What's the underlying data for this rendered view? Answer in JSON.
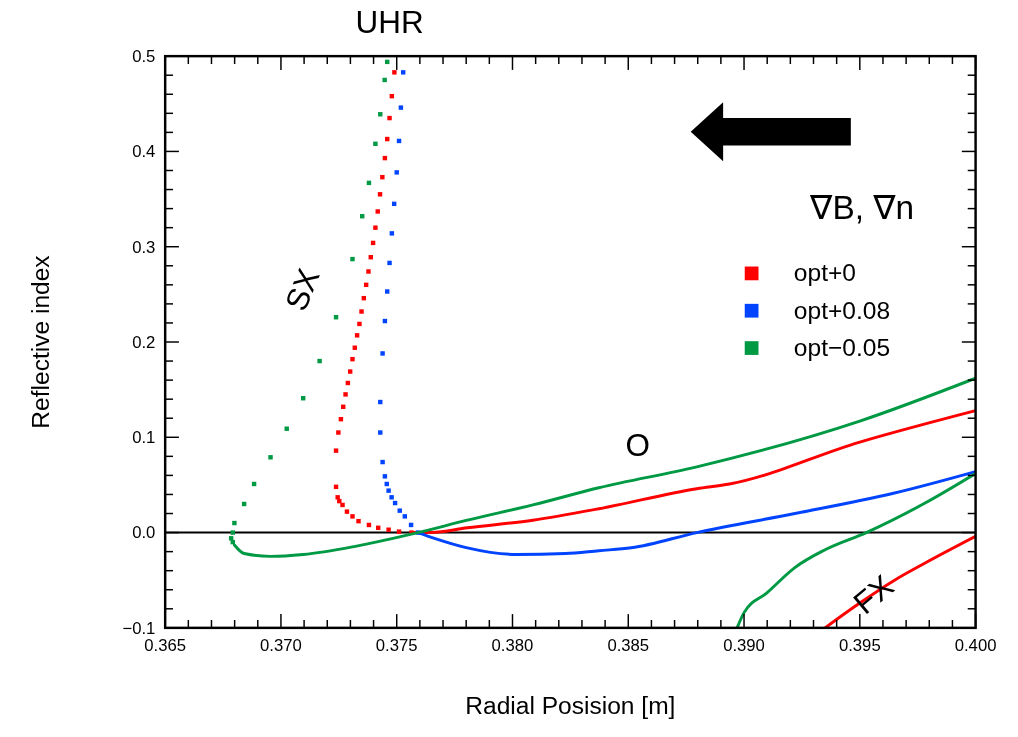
{
  "chart_data": {
    "type": "line",
    "xlabel": "Radial Posision [m]",
    "ylabel": "Reflective index",
    "xlim": [
      0.365,
      0.4
    ],
    "ylim": [
      -0.1,
      0.5
    ],
    "xticks": [
      0.365,
      {
        "value": 0.366,
        "label": null
      },
      {
        "value": 0.367,
        "label": null
      },
      {
        "value": 0.368,
        "label": null
      },
      {
        "value": 0.369,
        "label": null
      },
      {
        "value": 0.37,
        "label": "0.370"
      },
      {
        "value": 0.371,
        "label": null
      },
      {
        "value": 0.372,
        "label": null
      },
      {
        "value": 0.373,
        "label": null
      },
      {
        "value": 0.374,
        "label": null
      },
      0.375,
      {
        "value": 0.376,
        "label": null
      },
      {
        "value": 0.377,
        "label": null
      },
      {
        "value": 0.378,
        "label": null
      },
      {
        "value": 0.379,
        "label": null
      },
      {
        "value": 0.38,
        "label": "0.380"
      },
      {
        "value": 0.381,
        "label": null
      },
      {
        "value": 0.382,
        "label": null
      },
      {
        "value": 0.383,
        "label": null
      },
      {
        "value": 0.384,
        "label": null
      },
      0.385,
      {
        "value": 0.386,
        "label": null
      },
      {
        "value": 0.387,
        "label": null
      },
      {
        "value": 0.388,
        "label": null
      },
      {
        "value": 0.389,
        "label": null
      },
      {
        "value": 0.39,
        "label": "0.390"
      },
      {
        "value": 0.391,
        "label": null
      },
      {
        "value": 0.392,
        "label": null
      },
      {
        "value": 0.393,
        "label": null
      },
      {
        "value": 0.394,
        "label": null
      },
      0.395,
      {
        "value": 0.396,
        "label": null
      },
      {
        "value": 0.397,
        "label": null
      },
      {
        "value": 0.398,
        "label": null
      },
      {
        "value": 0.399,
        "label": null
      },
      {
        "value": 0.4,
        "label": "0.400"
      }
    ],
    "yticks": [
      {
        "value": -0.1,
        "label": "−0.1"
      },
      {
        "value": -0.08,
        "label": null
      },
      {
        "value": -0.06,
        "label": null
      },
      {
        "value": -0.04,
        "label": null
      },
      {
        "value": -0.02,
        "label": null
      },
      {
        "value": 0,
        "label": "0.0"
      },
      {
        "value": 0.02,
        "label": null
      },
      {
        "value": 0.04,
        "label": null
      },
      {
        "value": 0.06,
        "label": null
      },
      {
        "value": 0.08,
        "label": null
      },
      0.1,
      {
        "value": 0.12,
        "label": null
      },
      {
        "value": 0.14,
        "label": null
      },
      {
        "value": 0.16,
        "label": null
      },
      {
        "value": 0.18,
        "label": null
      },
      0.2,
      {
        "value": 0.22,
        "label": null
      },
      {
        "value": 0.24,
        "label": null
      },
      {
        "value": 0.26,
        "label": null
      },
      {
        "value": 0.28,
        "label": null
      },
      0.3,
      {
        "value": 0.32,
        "label": null
      },
      {
        "value": 0.34,
        "label": null
      },
      {
        "value": 0.36,
        "label": null
      },
      {
        "value": 0.38,
        "label": null
      },
      0.4,
      {
        "value": 0.42,
        "label": null
      },
      {
        "value": 0.44,
        "label": null
      },
      {
        "value": 0.46,
        "label": null
      },
      {
        "value": 0.48,
        "label": null
      },
      0.5
    ],
    "grid": false,
    "legend": "right",
    "line_style": "solid",
    "ref_lines": [
      {
        "axis": "y",
        "value": 0,
        "color": "#000000"
      }
    ],
    "annotations": [
      "UHR",
      "SX",
      "O",
      "FX",
      "∇B, ∇n"
    ],
    "series": [
      {
        "name": "opt+0",
        "type": "scatter",
        "marker": "square",
        "color": "#ff0000",
        "x": [
          0.3749,
          0.37479,
          0.37469,
          0.37459,
          0.37449,
          0.37438,
          0.37428,
          0.37418,
          0.37408,
          0.37398,
          0.37388,
          0.37378,
          0.37368,
          0.37358,
          0.37348,
          0.37339,
          0.37329,
          0.37319,
          0.37309,
          0.37299,
          0.37289,
          0.37279,
          0.37269,
          0.37259,
          0.37248,
          0.37238,
          0.37238,
          0.37245,
          0.37252,
          0.37266,
          0.37285,
          0.37309,
          0.37335,
          0.3738,
          0.3742,
          0.37465,
          0.3751,
          0.37564
        ],
        "values": [
          0.483,
          0.458,
          0.435,
          0.413,
          0.393,
          0.373,
          0.355,
          0.337,
          0.32,
          0.304,
          0.289,
          0.274,
          0.26,
          0.246,
          0.232,
          0.219,
          0.207,
          0.194,
          0.182,
          0.169,
          0.157,
          0.145,
          0.132,
          0.119,
          0.105,
          0.086,
          0.048,
          0.037,
          0.033,
          0.029,
          0.022,
          0.017,
          0.012,
          0.008,
          0.005,
          0.003,
          0.001,
          0
        ]
      },
      {
        "color": "#ff0000",
        "x": [
          0.37564,
          0.3765,
          0.37805,
          0.38088,
          0.38373,
          0.38796,
          0.38937,
          0.395,
          0.4
        ],
        "values": [
          0,
          0,
          0.005,
          0.013,
          0.025,
          0.046,
          0.051,
          0.095,
          0.128
        ]
      },
      {
        "color": "#ff0000",
        "x": [
          0.3935,
          0.395,
          0.3965,
          0.39782,
          0.4
        ],
        "values": [
          -0.1,
          -0.074,
          -0.05,
          -0.032,
          -0.004
        ]
      },
      {
        "name": "opt+0.08",
        "type": "scatter",
        "marker": "square",
        "color": "#0044ff",
        "x": [
          0.37528,
          0.37518,
          0.3751,
          0.375,
          0.37489,
          0.37479,
          0.37469,
          0.37459,
          0.37449,
          0.37439,
          0.37429,
          0.37429,
          0.37439,
          0.37449,
          0.37457,
          0.37465,
          0.37478,
          0.37493,
          0.37513,
          0.37535,
          0.37562,
          0.37592
        ],
        "values": [
          0.483,
          0.446,
          0.411,
          0.378,
          0.345,
          0.314,
          0.283,
          0.253,
          0.222,
          0.188,
          0.137,
          0.105,
          0.074,
          0.059,
          0.051,
          0.044,
          0.037,
          0.031,
          0.023,
          0.017,
          0.008,
          0
        ]
      },
      {
        "color": "#0044ff",
        "x": [
          0.37592,
          0.37663,
          0.37805,
          0.38017,
          0.38229,
          0.38373,
          0.38513,
          0.38796,
          0.3922,
          0.39641,
          0.4
        ],
        "values": [
          0,
          -0.006,
          -0.016,
          -0.023,
          -0.022,
          -0.019,
          -0.016,
          0,
          0.02,
          0.041,
          0.064
        ]
      },
      {
        "name": "opt−0.05",
        "type": "scatter",
        "marker": "square",
        "color": "#009944",
        "x": [
          0.37459,
          0.37448,
          0.37429,
          0.37408,
          0.3738,
          0.37351,
          0.37309,
          0.37238,
          0.37167,
          0.37096,
          0.37025,
          0.36955,
          0.36884,
          0.36841,
          0.36799,
          0.36792,
          0.36785,
          0.36792
        ],
        "values": [
          0.494,
          0.475,
          0.439,
          0.408,
          0.367,
          0.332,
          0.287,
          0.226,
          0.18,
          0.141,
          0.109,
          0.079,
          0.051,
          0.03,
          0.01,
          0,
          -0.006,
          -0.01
        ]
      },
      {
        "color": "#009944",
        "x": [
          0.36799,
          0.36841,
          0.36955,
          0.37096,
          0.37309,
          0.37521,
          0.37592,
          0.37805,
          0.38088,
          0.38373,
          0.38796,
          0.395,
          0.4
        ],
        "values": [
          -0.013,
          -0.022,
          -0.025,
          -0.023,
          -0.015,
          -0.004,
          0,
          0.013,
          0.029,
          0.047,
          0.069,
          0.117,
          0.162
        ]
      },
      {
        "color": "#009944",
        "x": [
          0.3897,
          0.39,
          0.391,
          0.39218,
          0.3935,
          0.39528,
          0.39782,
          0.4
        ],
        "values": [
          -0.1,
          -0.084,
          -0.063,
          -0.037,
          -0.018,
          0,
          0.031,
          0.062
        ]
      }
    ]
  }
}
